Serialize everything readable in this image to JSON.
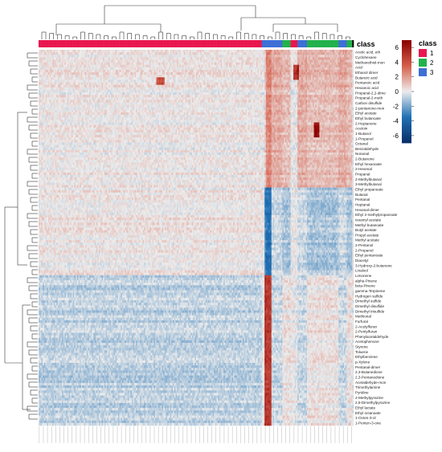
{
  "chart_data": {
    "type": "heatmap",
    "title": "",
    "xlabel": "",
    "ylabel": "",
    "color_scale": {
      "min": -7,
      "max": 7,
      "ticks": [
        6,
        4,
        2,
        0,
        -2,
        -4,
        -6
      ],
      "low_color": "#08306b",
      "mid_color": "#ececec",
      "high_color": "#8b0000"
    },
    "class_annotation": {
      "title": "class",
      "groups": [
        {
          "label": "1",
          "color": "#e8174f"
        },
        {
          "label": "2",
          "color": "#22b14c"
        },
        {
          "label": "3",
          "color": "#3d6fd6"
        }
      ],
      "column_classes": [
        1,
        1,
        1,
        1,
        1,
        1,
        1,
        1,
        1,
        1,
        1,
        1,
        1,
        1,
        1,
        1,
        1,
        1,
        1,
        1,
        1,
        1,
        1,
        1,
        1,
        1,
        1,
        1,
        1,
        1,
        1,
        1,
        1,
        1,
        1,
        1,
        1,
        1,
        1,
        1,
        1,
        1,
        1,
        1,
        1,
        1,
        1,
        1,
        1,
        1,
        1,
        1,
        1,
        1,
        1,
        1,
        1,
        1,
        1,
        1,
        1,
        1,
        1,
        1,
        1,
        1,
        1,
        1,
        1,
        1,
        1,
        1,
        1,
        1,
        1,
        1,
        1,
        1,
        1,
        1,
        1,
        1,
        1,
        1,
        1,
        1,
        1,
        1,
        1,
        1,
        1,
        1,
        1,
        1,
        1,
        1,
        1,
        1,
        1,
        1,
        1,
        1,
        1,
        1,
        1,
        1,
        1,
        1,
        1,
        1,
        1,
        1,
        1,
        1,
        1,
        1,
        1,
        1,
        1,
        1,
        1,
        1,
        1,
        1,
        1,
        1,
        1,
        1,
        1,
        1,
        1,
        1,
        1,
        1,
        1,
        1,
        1,
        1,
        1,
        1,
        1,
        1,
        1,
        1,
        1,
        1,
        1,
        1,
        1,
        1,
        1,
        1,
        1,
        1,
        1,
        1,
        1,
        1,
        1,
        1,
        1,
        1,
        1,
        3,
        3,
        3,
        3,
        3,
        3,
        3,
        3,
        3,
        3,
        3,
        3,
        3,
        3,
        3,
        2,
        2,
        2,
        2,
        2,
        2,
        1,
        1,
        1,
        1,
        1,
        3,
        3,
        3,
        3,
        3,
        3,
        3,
        2,
        2,
        2,
        2,
        2,
        2,
        2,
        2,
        2,
        2,
        2,
        2,
        2,
        2,
        2,
        2,
        2,
        2,
        2,
        2,
        2,
        2,
        2,
        3,
        3,
        3,
        3,
        3,
        3,
        2,
        2,
        2,
        2
      ]
    },
    "rows": [
      "Acetic acid, eth",
      "Cyclohexane",
      "Methanethiol-mon",
      "Acid",
      "Ethanol dimer",
      "Butanoic acid",
      "Pentanoic acid",
      "Hexanoic acid",
      "Propanal-2,2-dime",
      "Propanal-2-meth",
      "Carbon disulfide",
      "2-pentanone-mon",
      "Ethyl acetate",
      "Ethyl butanoate",
      "2-Heptanone",
      "Acetoin",
      "1-Butanol",
      "1-Propanol",
      "Octanal",
      "Benzaldehyde",
      "Nonanal",
      "2-Butanone",
      "Ethyl hexanoate",
      "2-Hexenal",
      "Propanal",
      "2-Methylbutanal",
      "3-Methylbutanal",
      "Ethyl propanoate",
      "Butanal",
      "Pentanal",
      "Heptanal",
      "Hexanal-dimer",
      "Ethyl 2-methylpropanoate",
      "Isoamyl acetate",
      "Methyl butanoate",
      "Butyl acetate",
      "Propyl acetate",
      "Methyl acetate",
      "2-Pentanol",
      "2-Propanol",
      "Ethyl pentanoate",
      "Diacetyl",
      "3-Hydroxy-2-butanone",
      "Linalool",
      "Limonene",
      "alpha-Pinene",
      "beta-Pinene",
      "gamma-Terpinene",
      "Hydrogen sulfide",
      "Dimethyl sulfide",
      "Dimethyl disulfide",
      "Dimethyl trisulfide",
      "Methional",
      "Furfural",
      "2-Acetylfuran",
      "2-Pentylfuran",
      "Phenylacetaldehyde",
      "Acetophenone",
      "Styrene",
      "Toluene",
      "Ethylbenzene",
      "p-Xylene",
      "Pentanal-dimer",
      "2,3-Butanedione",
      "2,3-Pentanedione",
      "Acetaldehyde-mon",
      "Trimethylamine",
      "Pyridine",
      "2-Methylpyrazine",
      "2,5-Dimethylpyrazine",
      "Ethyl lactate",
      "Ethyl octanoate",
      "1-Octen-3-ol",
      "1-Penten-3-one"
    ],
    "n_columns": 230,
    "n_rows": 150,
    "ylim": [
      -7,
      7
    ]
  }
}
